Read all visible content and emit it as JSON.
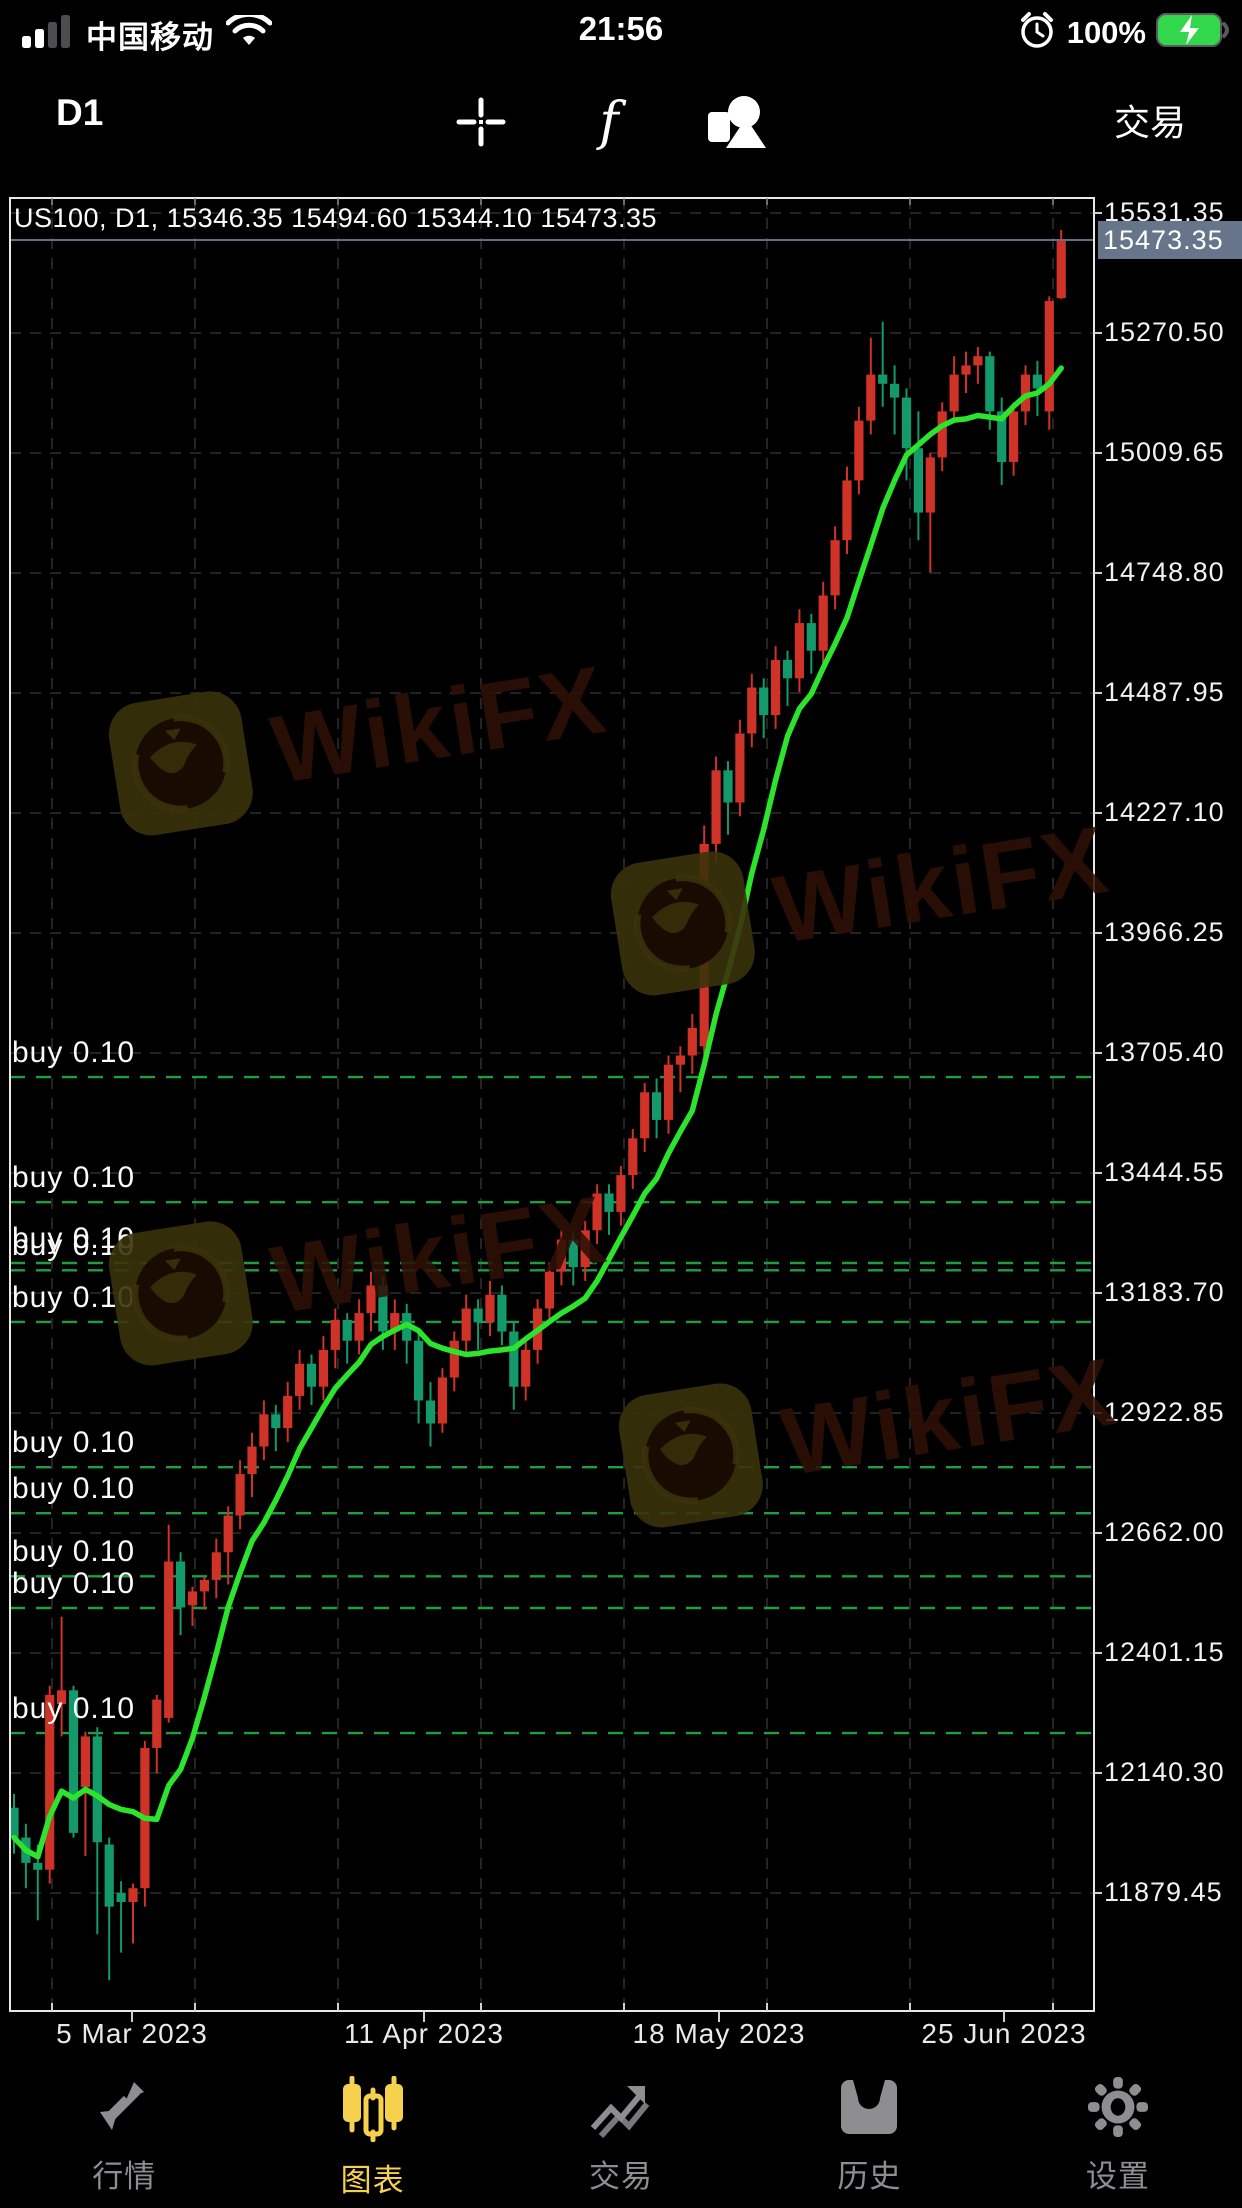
{
  "status_bar": {
    "carrier": "中国移动",
    "time": "21:56",
    "battery_pct": "100%",
    "icons": [
      "signal-bars-icon",
      "wifi-icon",
      "alarm-clock-icon",
      "battery-charging-icon"
    ]
  },
  "toolbar": {
    "timeframe": "D1",
    "trade_label": "交易",
    "icons": [
      "crosshair-icon",
      "function-icon",
      "chart-objects-icon"
    ]
  },
  "chart": {
    "header": "US100, D1, 15346.35 15494.60 15344.10 15473.35",
    "watermark_text": "WikiFX",
    "current_price_tag": "15473.35",
    "price_axis_labels": [
      "15531.35",
      "15270.50",
      "15009.65",
      "14748.80",
      "14487.95",
      "14227.10",
      "13966.25",
      "13705.40",
      "13444.55",
      "13183.70",
      "12922.85",
      "12662.00",
      "12401.15",
      "12140.30",
      "11879.45"
    ],
    "date_axis_labels": [
      "5 Mar 2023",
      "11 Apr 2023",
      "18 May 2023",
      "25 Jun 2023"
    ],
    "orders": [
      {
        "label": "buy 0.10",
        "price": 13653
      },
      {
        "label": "buy 0.10",
        "price": 13381
      },
      {
        "label": "buy 0.10",
        "price": 13249
      },
      {
        "label": "buy 0.10",
        "price": 13233
      },
      {
        "label": "buy 0.10",
        "price": 13121
      },
      {
        "label": "buy 0.10",
        "price": 12805
      },
      {
        "label": "buy 0.10",
        "price": 12705
      },
      {
        "label": "buy 0.10",
        "price": 12568
      },
      {
        "label": "buy 0.10",
        "price": 12499
      },
      {
        "label": "buy 0.10",
        "price": 12227
      }
    ],
    "colors": {
      "up_candle": "#cf3226",
      "down_candle": "#14996b",
      "ma_line": "#2be42b",
      "order_line": "#1d9e42",
      "grid": "#2d2d2d",
      "border": "#e8e8e8",
      "price_tag_bg": "#66758a",
      "current_price_line": "#5d7088",
      "active_tab": "#f6d14e"
    }
  },
  "chart_data": {
    "type": "candlestick",
    "symbol": "US100",
    "timeframe": "D1",
    "title": "US100, D1",
    "last_bar": {
      "open": 15346.35,
      "high": 15494.6,
      "low": 15344.1,
      "close": 15473.35
    },
    "y_axis_ticks": [
      15531.35,
      15270.5,
      15009.65,
      14748.8,
      14487.95,
      14227.1,
      13966.25,
      13705.4,
      13444.55,
      13183.7,
      12922.85,
      12662.0,
      12401.15,
      12140.3,
      11879.45
    ],
    "x_axis_ticks": [
      "5 Mar 2023",
      "11 Apr 2023",
      "18 May 2023",
      "25 Jun 2023"
    ],
    "ylim": [
      11700,
      15560
    ],
    "grid": true,
    "ma_period": 8,
    "order_lines": [
      13653,
      13381,
      13249,
      13233,
      13121,
      12805,
      12705,
      12568,
      12499,
      12227
    ],
    "candles_ohlc": [
      [
        12065,
        12095,
        11965,
        12000
      ],
      [
        12000,
        12030,
        11890,
        11945
      ],
      [
        11945,
        11985,
        11820,
        11930
      ],
      [
        11930,
        12330,
        11900,
        12310
      ],
      [
        12290,
        12480,
        12220,
        12320
      ],
      [
        12320,
        12330,
        12000,
        12010
      ],
      [
        12110,
        12230,
        11960,
        12220
      ],
      [
        12220,
        12240,
        11790,
        11990
      ],
      [
        11985,
        12000,
        11690,
        11850
      ],
      [
        11880,
        11905,
        11750,
        11860
      ],
      [
        11860,
        11900,
        11770,
        11890
      ],
      [
        11890,
        12210,
        11850,
        12195
      ],
      [
        12195,
        12310,
        12140,
        12300
      ],
      [
        12260,
        12680,
        12250,
        12600
      ],
      [
        12600,
        12620,
        12440,
        12500
      ],
      [
        12505,
        12545,
        12460,
        12535
      ],
      [
        12535,
        12565,
        12495,
        12560
      ],
      [
        12560,
        12650,
        12520,
        12620
      ],
      [
        12620,
        12720,
        12550,
        12700
      ],
      [
        12700,
        12820,
        12670,
        12790
      ],
      [
        12790,
        12880,
        12740,
        12850
      ],
      [
        12850,
        12950,
        12820,
        12920
      ],
      [
        12920,
        12940,
        12840,
        12890
      ],
      [
        12890,
        12990,
        12860,
        12960
      ],
      [
        12960,
        13060,
        12930,
        13030
      ],
      [
        13030,
        13050,
        12940,
        12980
      ],
      [
        12980,
        13090,
        12950,
        13060
      ],
      [
        13060,
        13150,
        13020,
        13125
      ],
      [
        13125,
        13140,
        13030,
        13080
      ],
      [
        13080,
        13170,
        13050,
        13140
      ],
      [
        13140,
        13230,
        13100,
        13200
      ],
      [
        13200,
        13220,
        13060,
        13100
      ],
      [
        13100,
        13170,
        13060,
        13140
      ],
      [
        13140,
        13160,
        13030,
        13080
      ],
      [
        13080,
        13100,
        12900,
        12950
      ],
      [
        12950,
        12990,
        12850,
        12900
      ],
      [
        12900,
        13020,
        12880,
        13000
      ],
      [
        13000,
        13100,
        12970,
        13080
      ],
      [
        13080,
        13180,
        13050,
        13150
      ],
      [
        13150,
        13170,
        13060,
        13120
      ],
      [
        13120,
        13210,
        13090,
        13180
      ],
      [
        13180,
        13200,
        13070,
        13100
      ],
      [
        13100,
        13120,
        12930,
        12980
      ],
      [
        12980,
        13080,
        12950,
        13060
      ],
      [
        13060,
        13170,
        13030,
        13150
      ],
      [
        13150,
        13250,
        13120,
        13230
      ],
      [
        13230,
        13320,
        13200,
        13300
      ],
      [
        13300,
        13320,
        13200,
        13240
      ],
      [
        13240,
        13340,
        13210,
        13320
      ],
      [
        13320,
        13420,
        13290,
        13400
      ],
      [
        13400,
        13420,
        13310,
        13360
      ],
      [
        13360,
        13460,
        13330,
        13440
      ],
      [
        13440,
        13540,
        13410,
        13520
      ],
      [
        13520,
        13640,
        13490,
        13620
      ],
      [
        13620,
        13650,
        13520,
        13560
      ],
      [
        13560,
        13700,
        13530,
        13680
      ],
      [
        13680,
        13720,
        13620,
        13700
      ],
      [
        13700,
        13790,
        13660,
        13760
      ],
      [
        13720,
        14200,
        13700,
        14160
      ],
      [
        14160,
        14350,
        14120,
        14320
      ],
      [
        14320,
        14340,
        14180,
        14250
      ],
      [
        14250,
        14430,
        14220,
        14400
      ],
      [
        14400,
        14530,
        14370,
        14500
      ],
      [
        14500,
        14520,
        14390,
        14440
      ],
      [
        14440,
        14590,
        14410,
        14560
      ],
      [
        14560,
        14580,
        14460,
        14520
      ],
      [
        14520,
        14670,
        14490,
        14640
      ],
      [
        14640,
        14660,
        14530,
        14580
      ],
      [
        14580,
        14730,
        14550,
        14700
      ],
      [
        14700,
        14850,
        14670,
        14820
      ],
      [
        14820,
        14980,
        14790,
        14950
      ],
      [
        14950,
        15110,
        14920,
        15080
      ],
      [
        15080,
        15260,
        15050,
        15180
      ],
      [
        15180,
        15295,
        15110,
        15160
      ],
      [
        15160,
        15200,
        15050,
        15130
      ],
      [
        15130,
        15150,
        14950,
        15020
      ],
      [
        15020,
        15100,
        14820,
        14880
      ],
      [
        14880,
        15010,
        14750,
        15000
      ],
      [
        15000,
        15120,
        14970,
        15100
      ],
      [
        15100,
        15220,
        15080,
        15180
      ],
      [
        15180,
        15230,
        15140,
        15200
      ],
      [
        15200,
        15240,
        15160,
        15220
      ],
      [
        15220,
        15230,
        15060,
        15100
      ],
      [
        15100,
        15130,
        14940,
        14990
      ],
      [
        14990,
        15120,
        14960,
        15100
      ],
      [
        15100,
        15200,
        15070,
        15180
      ],
      [
        15180,
        15210,
        15090,
        15150
      ],
      [
        15100,
        15350,
        15060,
        15340
      ],
      [
        15346.35,
        15494.6,
        15344.1,
        15473.35
      ]
    ]
  },
  "tab_bar": {
    "items": [
      {
        "label": "行情",
        "icon": "quotes-arrows-icon",
        "active": false
      },
      {
        "label": "图表",
        "icon": "candlestick-chart-icon",
        "active": true
      },
      {
        "label": "交易",
        "icon": "trade-trend-icon",
        "active": false
      },
      {
        "label": "历史",
        "icon": "history-archive-icon",
        "active": false
      },
      {
        "label": "设置",
        "icon": "settings-gear-icon",
        "active": false
      }
    ]
  }
}
